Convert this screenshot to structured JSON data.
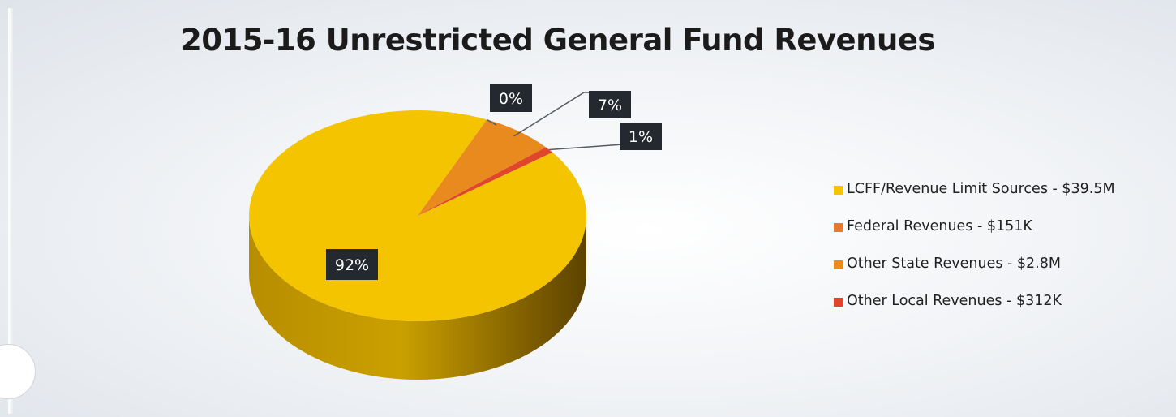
{
  "chart_data": {
    "type": "pie",
    "title": "2015-16 Unrestricted General Fund Revenues",
    "categories": [
      "LCFF/Revenue Limit Sources - $39.5M",
      "Federal Revenues - $151K",
      "Other State Revenues - $2.8M",
      "Other Local Revenues - $312K"
    ],
    "values": [
      92,
      0,
      7,
      1
    ],
    "data_labels": [
      "92%",
      "0%",
      "7%",
      "1%"
    ],
    "colors": [
      "#f5c400",
      "#e8782c",
      "#e98a1e",
      "#e0462c"
    ],
    "legend_position": "right",
    "style": "3d"
  },
  "legend": {
    "items": [
      {
        "label": "LCFF/Revenue Limit Sources - $39.5M",
        "color": "#f5c400"
      },
      {
        "label": "Federal Revenues - $151K",
        "color": "#e8782c"
      },
      {
        "label": "Other State Revenues - $2.8M",
        "color": "#e98a1e"
      },
      {
        "label": "Other Local Revenues - $312K",
        "color": "#e0462c"
      }
    ]
  }
}
